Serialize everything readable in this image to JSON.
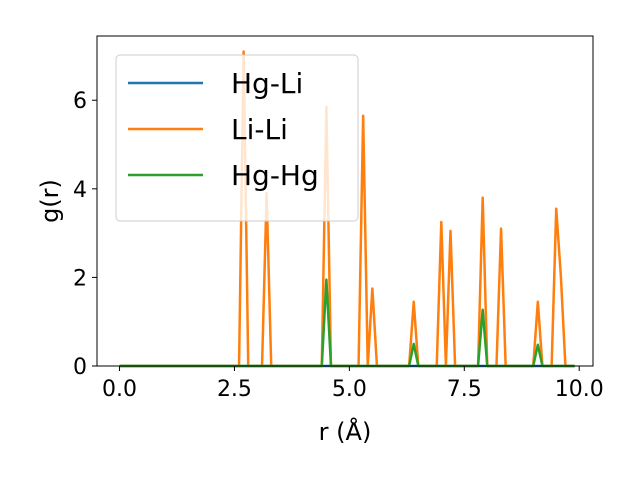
{
  "chart_data": {
    "type": "line",
    "title": "",
    "xlabel": "r (Å)",
    "ylabel": "g(r)",
    "xlim": [
      -0.49,
      10.3
    ],
    "ylim": [
      0,
      7.45
    ],
    "xticks": [
      0.0,
      2.5,
      5.0,
      7.5,
      10.0
    ],
    "xtick_labels": [
      "0.0",
      "2.5",
      "5.0",
      "7.5",
      "10.0"
    ],
    "yticks": [
      0,
      2,
      4,
      6
    ],
    "ytick_labels": [
      "0",
      "2",
      "4",
      "6"
    ],
    "grid": false,
    "legend_position": "upper-left",
    "series": [
      {
        "name": "Hg-Li",
        "color": "#1f77b4",
        "x": [
          0.0,
          9.9
        ],
        "y": [
          0.0,
          0.0
        ]
      },
      {
        "name": "Li-Li",
        "color": "#ff7f0e",
        "x": [
          0.0,
          2.6,
          2.7,
          2.8,
          3.1,
          3.2,
          3.3,
          4.4,
          4.5,
          4.6,
          5.2,
          5.3,
          5.4,
          5.5,
          5.6,
          6.3,
          6.4,
          6.5,
          6.9,
          7.0,
          7.1,
          7.2,
          7.3,
          7.8,
          7.9,
          8.0,
          8.2,
          8.3,
          8.4,
          9.0,
          9.1,
          9.2,
          9.4,
          9.5,
          9.6,
          9.7,
          9.8,
          9.9
        ],
        "y": [
          0.0,
          0.0,
          7.1,
          0.0,
          0.0,
          3.9,
          0.0,
          0.0,
          5.85,
          0.0,
          0.0,
          5.65,
          0.0,
          1.75,
          0.0,
          0.0,
          1.45,
          0.0,
          0.0,
          3.25,
          0.0,
          3.05,
          0.0,
          0.0,
          3.8,
          0.0,
          0.0,
          3.1,
          0.0,
          0.0,
          1.45,
          0.0,
          0.0,
          3.55,
          2.05,
          0.0,
          0.0,
          0.0
        ]
      },
      {
        "name": "Hg-Hg",
        "color": "#2ca02c",
        "x": [
          0.0,
          4.4,
          4.5,
          4.6,
          6.3,
          6.4,
          6.5,
          7.8,
          7.9,
          8.0,
          9.0,
          9.1,
          9.2,
          9.9
        ],
        "y": [
          0.0,
          0.0,
          1.95,
          0.0,
          0.0,
          0.5,
          0.0,
          0.0,
          1.27,
          0.0,
          0.0,
          0.48,
          0.0,
          0.0
        ]
      }
    ]
  }
}
